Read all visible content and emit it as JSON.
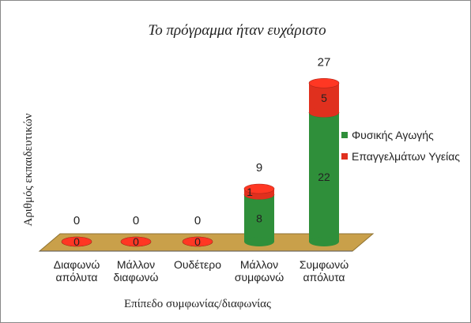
{
  "chart_data": {
    "type": "bar3d_stacked",
    "title": "Το πρόγραμμα ήταν ευχάριστο",
    "x_label": "Επίπεδο συμφωνίας/διαφωνίας",
    "y_label": "Αριθμός εκπαιδευτικών",
    "categories": [
      "Διαφωνώ απόλυτα",
      "Μάλλον διαφωνώ",
      "Ουδέτερο",
      "Μάλλον συμφωνώ",
      "Συμφωνώ απόλυτα"
    ],
    "series": [
      {
        "name": "Φυσικής Αγωγής",
        "color": "#2f8f3a",
        "values": [
          0,
          0,
          0,
          8,
          22
        ]
      },
      {
        "name": "Επαγγελμάτων Υγείας",
        "color": "#e0301e",
        "values": [
          0,
          0,
          0,
          1,
          5
        ]
      }
    ],
    "totals": [
      0,
      0,
      0,
      9,
      27
    ],
    "ylim": [
      0,
      30
    ],
    "legend": "right"
  }
}
